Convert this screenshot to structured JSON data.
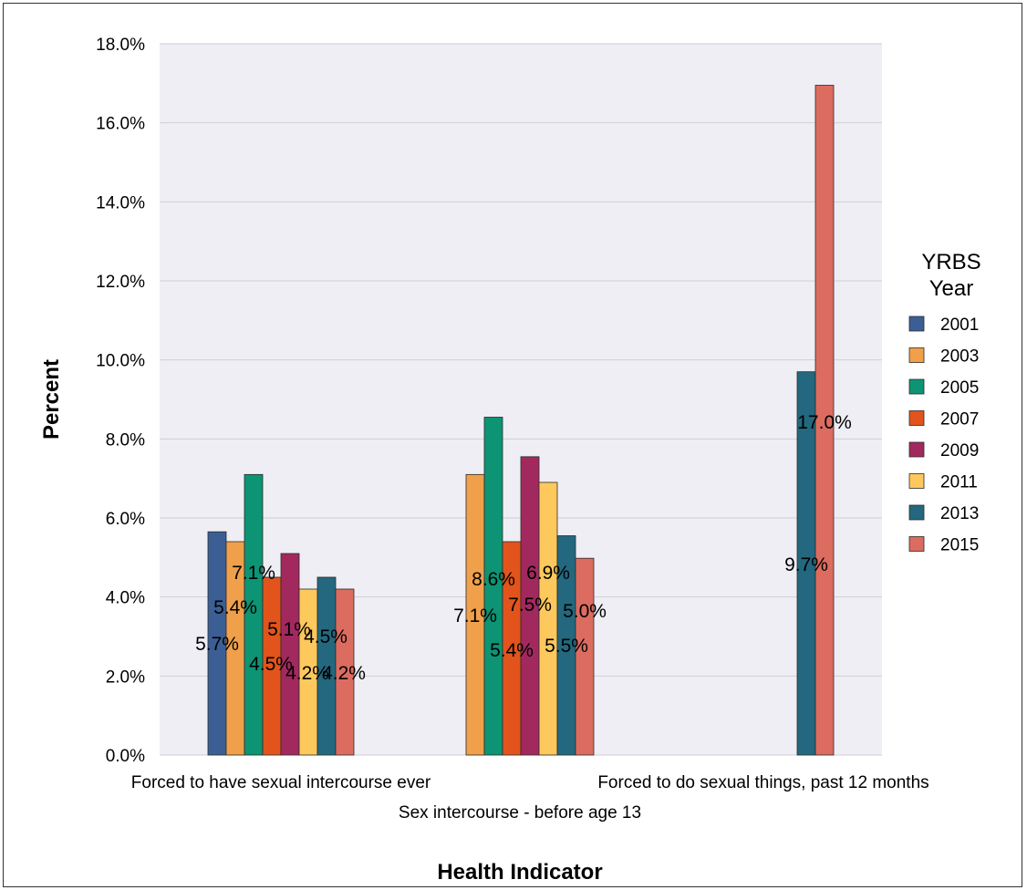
{
  "chart_data": {
    "type": "bar",
    "title": "",
    "xlabel": "Health Indicator",
    "ylabel": "Percent",
    "ylim": [
      0,
      18
    ],
    "y_ticks": [
      "0.0%",
      "2.0%",
      "4.0%",
      "6.0%",
      "8.0%",
      "10.0%",
      "12.0%",
      "14.0%",
      "16.0%",
      "18.0%"
    ],
    "y_tick_values": [
      0,
      2,
      4,
      6,
      8,
      10,
      12,
      14,
      16,
      18
    ],
    "categories": [
      "Forced to have sexual intercourse ever",
      "Sex intercourse - before age 13",
      "Forced to do sexual things, past 12 months"
    ],
    "legend_title": "YRBS Year",
    "legend_position": "right",
    "grid": true,
    "series": [
      {
        "name": "2001",
        "color": "#3b5f95",
        "values": [
          5.65,
          null,
          null
        ],
        "labels": [
          "5.7%",
          "",
          ""
        ]
      },
      {
        "name": "2003",
        "color": "#f0a04b",
        "values": [
          5.4,
          7.1,
          null
        ],
        "labels": [
          "5.4%",
          "7.1%",
          ""
        ]
      },
      {
        "name": "2005",
        "color": "#0c9474",
        "values": [
          7.1,
          8.55,
          null
        ],
        "labels": [
          "7.1%",
          "8.6%",
          ""
        ]
      },
      {
        "name": "2007",
        "color": "#e2541b",
        "values": [
          4.5,
          5.4,
          null
        ],
        "labels": [
          "4.5%",
          "5.4%",
          ""
        ]
      },
      {
        "name": "2009",
        "color": "#a2295e",
        "values": [
          5.1,
          7.55,
          null
        ],
        "labels": [
          "5.1%",
          "7.5%",
          ""
        ]
      },
      {
        "name": "2011",
        "color": "#fdc85c",
        "values": [
          4.2,
          6.9,
          null
        ],
        "labels": [
          "4.2%",
          "6.9%",
          ""
        ]
      },
      {
        "name": "2013",
        "color": "#23687e",
        "values": [
          4.5,
          5.55,
          9.7
        ],
        "labels": [
          "4.5%",
          "5.5%",
          "9.7%"
        ]
      },
      {
        "name": "2015",
        "color": "#dc6c60",
        "values": [
          4.2,
          4.98,
          16.95
        ],
        "labels": [
          "4.2%",
          "5.0%",
          "17.0%"
        ]
      }
    ],
    "plot_background": "#efeef4",
    "grid_color": "#cfcfd6"
  }
}
